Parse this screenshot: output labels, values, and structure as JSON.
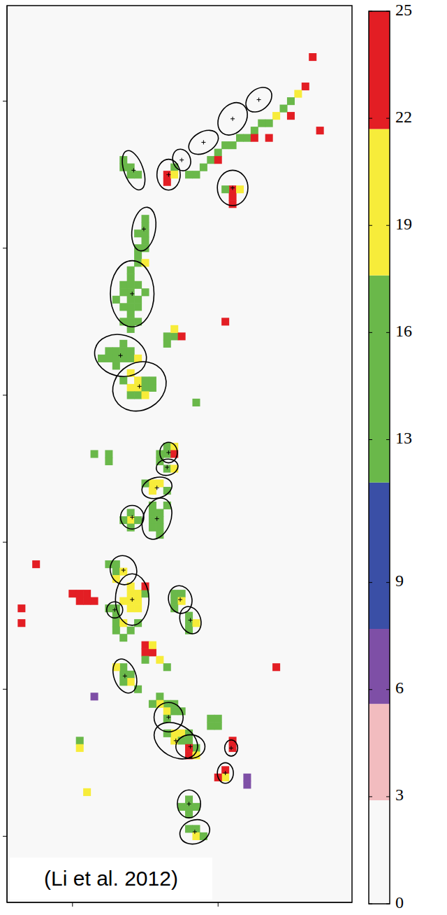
{
  "chart_data": {
    "type": "heatmap",
    "xlim": [
      -4.5,
      19.2
    ],
    "ylim": [
      -4.5,
      56.5
    ],
    "xticks": [
      0,
      10
    ],
    "yticks": [
      0,
      10,
      20,
      30,
      40,
      50
    ],
    "tick_labels": false,
    "cell_size": 0.5,
    "cells": [
      [
        16.5,
        53,
        23
      ],
      [
        16,
        51,
        22
      ],
      [
        15.5,
        50.5,
        20
      ],
      [
        15,
        50,
        16
      ],
      [
        14.5,
        49.5,
        16
      ],
      [
        14,
        49,
        20
      ],
      [
        13.5,
        48.5,
        16
      ],
      [
        13,
        48.5,
        16
      ],
      [
        12.5,
        48,
        12
      ],
      [
        12,
        47.5,
        16
      ],
      [
        11.5,
        47.5,
        12
      ],
      [
        11,
        47,
        12
      ],
      [
        10.5,
        47,
        16
      ],
      [
        10,
        46.5,
        12
      ],
      [
        9.5,
        46,
        12
      ],
      [
        9,
        45.5,
        16
      ],
      [
        8.5,
        45,
        12
      ],
      [
        8,
        45,
        16
      ],
      [
        12.5,
        47.5,
        23
      ],
      [
        13.5,
        47.5,
        23
      ],
      [
        15,
        49,
        23
      ],
      [
        10,
        46,
        23
      ],
      [
        17,
        48,
        23
      ],
      [
        6.5,
        45,
        23
      ],
      [
        6.5,
        44.5,
        23
      ],
      [
        7,
        45.5,
        16
      ],
      [
        7,
        45,
        20
      ],
      [
        4,
        45.5,
        12
      ],
      [
        4,
        45,
        12
      ],
      [
        4.5,
        45,
        16
      ],
      [
        3.5,
        45.5,
        16
      ],
      [
        3.5,
        46,
        16
      ],
      [
        11,
        44,
        23
      ],
      [
        11,
        43.5,
        23
      ],
      [
        11.5,
        44,
        20
      ],
      [
        10.5,
        44,
        16
      ],
      [
        11,
        43,
        23
      ],
      [
        5,
        42,
        12
      ],
      [
        5,
        41.5,
        12
      ],
      [
        5,
        41,
        16
      ],
      [
        4.5,
        41,
        12
      ],
      [
        5,
        40.5,
        12
      ],
      [
        4.5,
        40,
        16
      ],
      [
        5,
        40,
        12
      ],
      [
        4.5,
        39.5,
        12
      ],
      [
        4.5,
        39,
        12
      ],
      [
        5,
        39,
        20
      ],
      [
        4,
        38.5,
        12
      ],
      [
        4,
        38,
        12
      ],
      [
        3.5,
        37.5,
        12
      ],
      [
        4,
        37.5,
        12
      ],
      [
        4.5,
        37.5,
        16
      ],
      [
        4,
        37,
        12
      ],
      [
        3.5,
        37,
        16
      ],
      [
        4,
        36.5,
        12
      ],
      [
        4.5,
        36.5,
        16
      ],
      [
        4,
        36,
        12
      ],
      [
        3.5,
        36,
        16
      ],
      [
        4,
        35.5,
        12
      ],
      [
        4.5,
        36,
        16
      ],
      [
        5,
        37,
        16
      ],
      [
        3.5,
        35,
        12
      ],
      [
        4,
        35,
        12
      ],
      [
        4,
        34.5,
        12
      ],
      [
        4.5,
        35,
        16
      ],
      [
        3,
        36.5,
        12
      ],
      [
        2.5,
        33,
        12
      ],
      [
        3,
        33,
        12
      ],
      [
        3.5,
        33,
        12
      ],
      [
        3,
        32.5,
        12
      ],
      [
        3.5,
        32.5,
        12
      ],
      [
        4,
        33,
        16
      ],
      [
        4,
        32.5,
        12
      ],
      [
        2,
        32.5,
        16
      ],
      [
        3.5,
        33.5,
        12
      ],
      [
        2.5,
        32.5,
        12
      ],
      [
        4.5,
        32.5,
        20
      ],
      [
        3,
        32,
        16
      ],
      [
        4,
        31.5,
        20
      ],
      [
        4.5,
        31,
        20
      ],
      [
        5,
        31,
        16
      ],
      [
        4.5,
        30.5,
        20
      ],
      [
        5,
        30.5,
        16
      ],
      [
        4,
        30.5,
        20
      ],
      [
        5.5,
        30.5,
        16
      ],
      [
        4.5,
        30,
        16
      ],
      [
        5,
        30,
        20
      ],
      [
        4,
        30,
        12
      ],
      [
        3.5,
        31,
        16
      ],
      [
        5.5,
        31,
        16
      ],
      [
        6.5,
        34,
        16
      ],
      [
        7,
        34,
        16
      ],
      [
        7,
        34.5,
        20
      ],
      [
        6.5,
        33.5,
        16
      ],
      [
        7.5,
        34,
        23
      ],
      [
        10.5,
        35,
        23
      ],
      [
        8.5,
        29.5,
        12
      ],
      [
        6.5,
        26.5,
        16
      ],
      [
        6.5,
        26,
        16
      ],
      [
        7,
        26.5,
        20
      ],
      [
        7,
        26,
        23
      ],
      [
        6,
        26,
        16
      ],
      [
        6.5,
        25,
        16
      ],
      [
        7,
        25,
        20
      ],
      [
        6,
        25.5,
        16
      ],
      [
        5.5,
        24,
        20
      ],
      [
        6,
        24,
        20
      ],
      [
        5,
        24,
        16
      ],
      [
        6.5,
        23.5,
        16
      ],
      [
        5.5,
        23.5,
        20
      ],
      [
        4,
        22,
        16
      ],
      [
        4,
        21.5,
        20
      ],
      [
        3.5,
        21.5,
        16
      ],
      [
        4.5,
        21.5,
        16
      ],
      [
        4,
        21,
        16
      ],
      [
        5.5,
        22.5,
        12
      ],
      [
        6,
        22,
        12
      ],
      [
        5.5,
        22,
        12
      ],
      [
        6,
        21.5,
        16
      ],
      [
        5.5,
        21.5,
        16
      ],
      [
        6,
        21,
        16
      ],
      [
        6,
        20.5,
        16
      ],
      [
        5.5,
        21,
        12
      ],
      [
        6.5,
        22.5,
        12
      ],
      [
        2.5,
        26,
        12
      ],
      [
        2.5,
        25.5,
        16
      ],
      [
        1.5,
        26,
        12
      ],
      [
        3,
        18.5,
        16
      ],
      [
        3,
        18,
        16
      ],
      [
        3.5,
        18,
        20
      ],
      [
        3,
        17.5,
        20
      ],
      [
        2.5,
        18.5,
        12
      ],
      [
        0,
        16.5,
        23
      ],
      [
        0.5,
        16.5,
        23
      ],
      [
        1,
        16.5,
        23
      ],
      [
        1.5,
        16,
        23
      ],
      [
        0.5,
        16,
        23
      ],
      [
        1,
        16,
        23
      ],
      [
        4,
        17,
        20
      ],
      [
        4,
        16.5,
        20
      ],
      [
        4.5,
        16.5,
        20
      ],
      [
        4,
        16,
        20
      ],
      [
        4.5,
        16,
        20
      ],
      [
        4,
        15.5,
        20
      ],
      [
        3.5,
        16,
        20
      ],
      [
        4.5,
        15.5,
        20
      ],
      [
        5,
        16.5,
        16
      ],
      [
        5,
        17,
        23
      ],
      [
        3,
        15.5,
        16
      ],
      [
        2.5,
        15.5,
        16
      ],
      [
        3,
        15,
        16
      ],
      [
        3,
        14.5,
        16
      ],
      [
        3.5,
        14.5,
        20
      ],
      [
        3,
        14,
        16
      ],
      [
        3.5,
        13.5,
        16
      ],
      [
        4,
        14,
        16
      ],
      [
        4.5,
        14.5,
        16
      ],
      [
        7,
        16.5,
        16
      ],
      [
        7.5,
        16.5,
        16
      ],
      [
        7,
        16,
        16
      ],
      [
        7.5,
        16,
        20
      ],
      [
        7,
        15.5,
        12
      ],
      [
        8,
        15,
        16
      ],
      [
        8,
        14.5,
        16
      ],
      [
        8.5,
        14.5,
        20
      ],
      [
        8,
        14,
        16
      ],
      [
        3.5,
        11.5,
        16
      ],
      [
        3.5,
        11,
        16
      ],
      [
        4,
        11,
        16
      ],
      [
        4,
        10.5,
        20
      ],
      [
        3.5,
        10.5,
        16
      ],
      [
        4.5,
        10,
        16
      ],
      [
        3,
        11.5,
        20
      ],
      [
        5,
        13,
        23
      ],
      [
        5.5,
        12.5,
        23
      ],
      [
        5,
        12.5,
        23
      ],
      [
        5.5,
        13,
        20
      ],
      [
        6,
        12,
        20
      ],
      [
        6.5,
        11.5,
        16
      ],
      [
        5,
        12,
        16
      ],
      [
        6,
        9.5,
        16
      ],
      [
        6.5,
        9,
        16
      ],
      [
        6,
        9,
        20
      ],
      [
        6.5,
        8.5,
        20
      ],
      [
        7,
        8.5,
        16
      ],
      [
        6.5,
        8,
        16
      ],
      [
        7,
        9,
        16
      ],
      [
        5.5,
        9,
        16
      ],
      [
        7.5,
        8.5,
        16
      ],
      [
        7,
        7,
        20
      ],
      [
        7.5,
        7,
        20
      ],
      [
        7,
        6.5,
        20
      ],
      [
        7.5,
        6.5,
        16
      ],
      [
        8,
        6.5,
        16
      ],
      [
        8,
        7,
        16
      ],
      [
        6.5,
        7,
        16
      ],
      [
        8.5,
        6,
        16
      ],
      [
        8,
        5.5,
        23
      ],
      [
        8.5,
        5.5,
        20
      ],
      [
        8,
        6,
        23
      ],
      [
        9.5,
        8,
        16
      ],
      [
        10,
        8,
        16
      ],
      [
        9.5,
        7.5,
        16
      ],
      [
        10,
        7.5,
        16
      ],
      [
        14,
        11.5,
        23
      ],
      [
        11,
        6.5,
        23
      ],
      [
        11,
        6,
        23
      ],
      [
        10.5,
        4.5,
        23
      ],
      [
        10.5,
        4,
        20
      ],
      [
        10,
        4,
        23
      ],
      [
        12,
        3.5,
        7
      ],
      [
        12,
        4,
        7
      ],
      [
        8,
        2.5,
        12
      ],
      [
        8,
        2,
        16
      ],
      [
        8.5,
        2,
        16
      ],
      [
        7.5,
        2,
        16
      ],
      [
        8,
        1.5,
        16
      ],
      [
        8,
        0.5,
        16
      ],
      [
        8.5,
        0.5,
        16
      ],
      [
        8.5,
        0,
        20
      ],
      [
        9,
        0,
        16
      ],
      [
        0.5,
        6.5,
        16
      ],
      [
        0.5,
        6,
        20
      ],
      [
        1,
        3,
        20
      ],
      [
        1.5,
        9.5,
        7
      ],
      [
        -3.5,
        15.5,
        23
      ],
      [
        -2.5,
        18.5,
        23
      ],
      [
        -3.5,
        14.5,
        23
      ]
    ],
    "ellipses": [
      {
        "x": 12.8,
        "y": 50.1,
        "rx": 1.0,
        "ry": 0.7,
        "angle": 40
      },
      {
        "x": 11.0,
        "y": 48.8,
        "rx": 1.2,
        "ry": 0.9,
        "angle": 55
      },
      {
        "x": 9.0,
        "y": 47.2,
        "rx": 1.1,
        "ry": 0.7,
        "angle": 30
      },
      {
        "x": 7.5,
        "y": 46.0,
        "rx": 0.6,
        "ry": 0.75,
        "angle": 20
      },
      {
        "x": 6.6,
        "y": 45.0,
        "rx": 0.8,
        "ry": 1.05,
        "angle": 0
      },
      {
        "x": 4.2,
        "y": 45.3,
        "rx": 0.65,
        "ry": 1.4,
        "angle": 20
      },
      {
        "x": 11.0,
        "y": 44.1,
        "rx": 1.05,
        "ry": 1.2,
        "angle": 0
      },
      {
        "x": 4.9,
        "y": 41.3,
        "rx": 0.8,
        "ry": 1.5,
        "angle": -10
      },
      {
        "x": 4.1,
        "y": 36.9,
        "rx": 1.5,
        "ry": 2.25,
        "angle": 0
      },
      {
        "x": 3.3,
        "y": 32.7,
        "rx": 1.8,
        "ry": 1.4,
        "angle": -15
      },
      {
        "x": 4.6,
        "y": 30.6,
        "rx": 1.9,
        "ry": 1.6,
        "angle": 30
      },
      {
        "x": 6.6,
        "y": 26.1,
        "rx": 0.6,
        "ry": 0.7,
        "angle": 0
      },
      {
        "x": 6.5,
        "y": 25.1,
        "rx": 0.75,
        "ry": 0.55,
        "angle": 10
      },
      {
        "x": 5.8,
        "y": 23.7,
        "rx": 1.05,
        "ry": 0.7,
        "angle": 15
      },
      {
        "x": 4.1,
        "y": 21.7,
        "rx": 0.8,
        "ry": 0.8,
        "angle": 0
      },
      {
        "x": 5.8,
        "y": 21.6,
        "rx": 0.95,
        "ry": 1.45,
        "angle": -20
      },
      {
        "x": 3.5,
        "y": 18.1,
        "rx": 0.9,
        "ry": 1.0,
        "angle": 20
      },
      {
        "x": 4.1,
        "y": 16.1,
        "rx": 1.15,
        "ry": 1.75,
        "angle": 0
      },
      {
        "x": 2.9,
        "y": 15.4,
        "rx": 0.55,
        "ry": 0.55,
        "angle": 0
      },
      {
        "x": 7.4,
        "y": 16.1,
        "rx": 0.8,
        "ry": 0.95,
        "angle": 15
      },
      {
        "x": 8.1,
        "y": 14.7,
        "rx": 0.7,
        "ry": 0.95,
        "angle": 20
      },
      {
        "x": 3.6,
        "y": 10.9,
        "rx": 0.75,
        "ry": 1.2,
        "angle": 20
      },
      {
        "x": 6.6,
        "y": 8.1,
        "rx": 1.0,
        "ry": 1.0,
        "angle": 0
      },
      {
        "x": 7.1,
        "y": 6.5,
        "rx": 1.6,
        "ry": 1.1,
        "angle": -30
      },
      {
        "x": 8.1,
        "y": 6.1,
        "rx": 1.0,
        "ry": 0.8,
        "angle": 0
      },
      {
        "x": 10.9,
        "y": 6.0,
        "rx": 0.45,
        "ry": 0.55,
        "angle": 0
      },
      {
        "x": 10.5,
        "y": 4.3,
        "rx": 0.55,
        "ry": 0.7,
        "angle": 0
      },
      {
        "x": 8.0,
        "y": 2.2,
        "rx": 0.8,
        "ry": 0.95,
        "angle": 0
      },
      {
        "x": 8.4,
        "y": 0.3,
        "rx": 1.05,
        "ry": 0.8,
        "angle": 20
      }
    ],
    "colorbar": {
      "range": [
        0,
        25
      ],
      "ticks": [
        0,
        3,
        6,
        9,
        13,
        16,
        19,
        22,
        25
      ],
      "bounds": [
        0,
        2.9,
        5.6,
        7.7,
        11.8,
        17.6,
        21.7,
        25
      ],
      "colors": [
        "#f8f8f8",
        "#f2bcbf",
        "#7e4fa6",
        "#3a4fa6",
        "#6ab84a",
        "#f7ec3a",
        "#e31e24"
      ]
    },
    "annotation": "(Li et al. 2012)"
  }
}
